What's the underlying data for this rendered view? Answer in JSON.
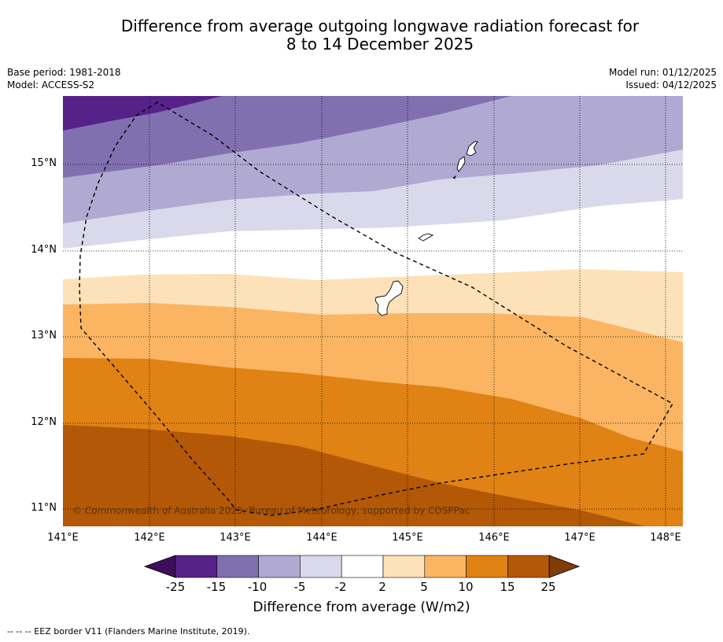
{
  "title": {
    "line1": "Difference from average outgoing longwave radiation forecast for",
    "line2": "8 to 14 December 2025"
  },
  "meta": {
    "base_period": "Base period: 1981-2018",
    "model": "Model: ACCESS-S2",
    "model_run": "Model run: 01/12/2025",
    "issued": "Issued: 04/12/2025"
  },
  "map": {
    "lat_labels": [
      "15°N",
      "14°N",
      "13°N",
      "12°N",
      "11°N"
    ],
    "lon_labels": [
      "141°E",
      "142°E",
      "143°E",
      "144°E",
      "145°E",
      "146°E",
      "147°E",
      "148°E"
    ],
    "copyright": "© Commonwealth of Australia 2025, Bureau of Meteorology, supported by COSPPac"
  },
  "colorbar": {
    "ticks": [
      "-25",
      "-15",
      "-10",
      "-5",
      "-2",
      "2",
      "5",
      "10",
      "15",
      "25"
    ],
    "colors": {
      "below_min": "#3b0f5a",
      "bins": [
        "#56228a",
        "#8170b0",
        "#b0a9d2",
        "#d9d9eb",
        "#ffffff",
        "#fde1b8",
        "#fbb562",
        "#e08214",
        "#b35806"
      ],
      "above_max": "#7f3b08"
    },
    "label": "Difference from average (W/m2)"
  },
  "footnote": "--  --  -- EEZ border V11 (Flanders Marine Institute, 2019)."
}
